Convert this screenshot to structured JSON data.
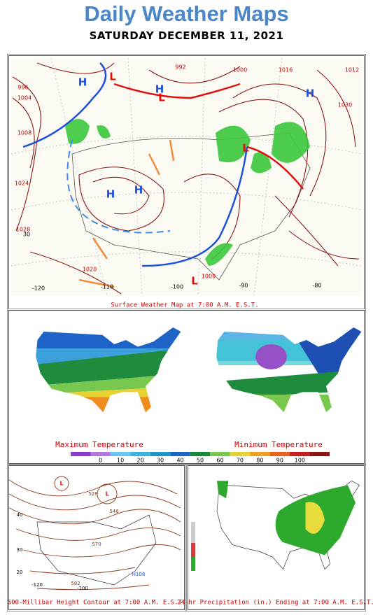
{
  "header": {
    "title": "Daily Weather Maps",
    "date": "SATURDAY DECEMBER 11, 2021"
  },
  "surface_map": {
    "caption": "Surface Weather Map at 7:00 A.M. E.S.T.",
    "isobar_labels": [
      "1004",
      "1008",
      "1012",
      "1016",
      "1020",
      "1024",
      "1028",
      "1000",
      "992",
      "996",
      "1009",
      "1030"
    ],
    "high_labels": [
      "H",
      "H",
      "H",
      "H",
      "H"
    ],
    "low_labels": [
      "L",
      "L",
      "L",
      "L"
    ],
    "coordinate_labels": [
      "-120",
      "-110",
      "-100",
      "-90",
      "-80",
      "30"
    ]
  },
  "temperature_maps": {
    "max_caption": "Maximum Temperature",
    "min_caption": "Minimum Temperature",
    "scale_ticks": [
      0,
      10,
      20,
      30,
      40,
      50,
      60,
      70,
      80,
      90,
      100
    ]
  },
  "height_map": {
    "caption": "500-Millibar Height Contour at 7:00 A.M. E.S.T.",
    "contour_labels": [
      "582",
      "570",
      "546",
      "528"
    ],
    "low_labels": [
      "L",
      "L"
    ],
    "high_labels": [
      "H108"
    ],
    "coordinate_labels": [
      "-120",
      "-100",
      "20",
      "30",
      "40"
    ]
  },
  "precipitation_map": {
    "caption": "24-hr Precipitation (in.) Ending at 7:00 A.M. E.S.T."
  }
}
